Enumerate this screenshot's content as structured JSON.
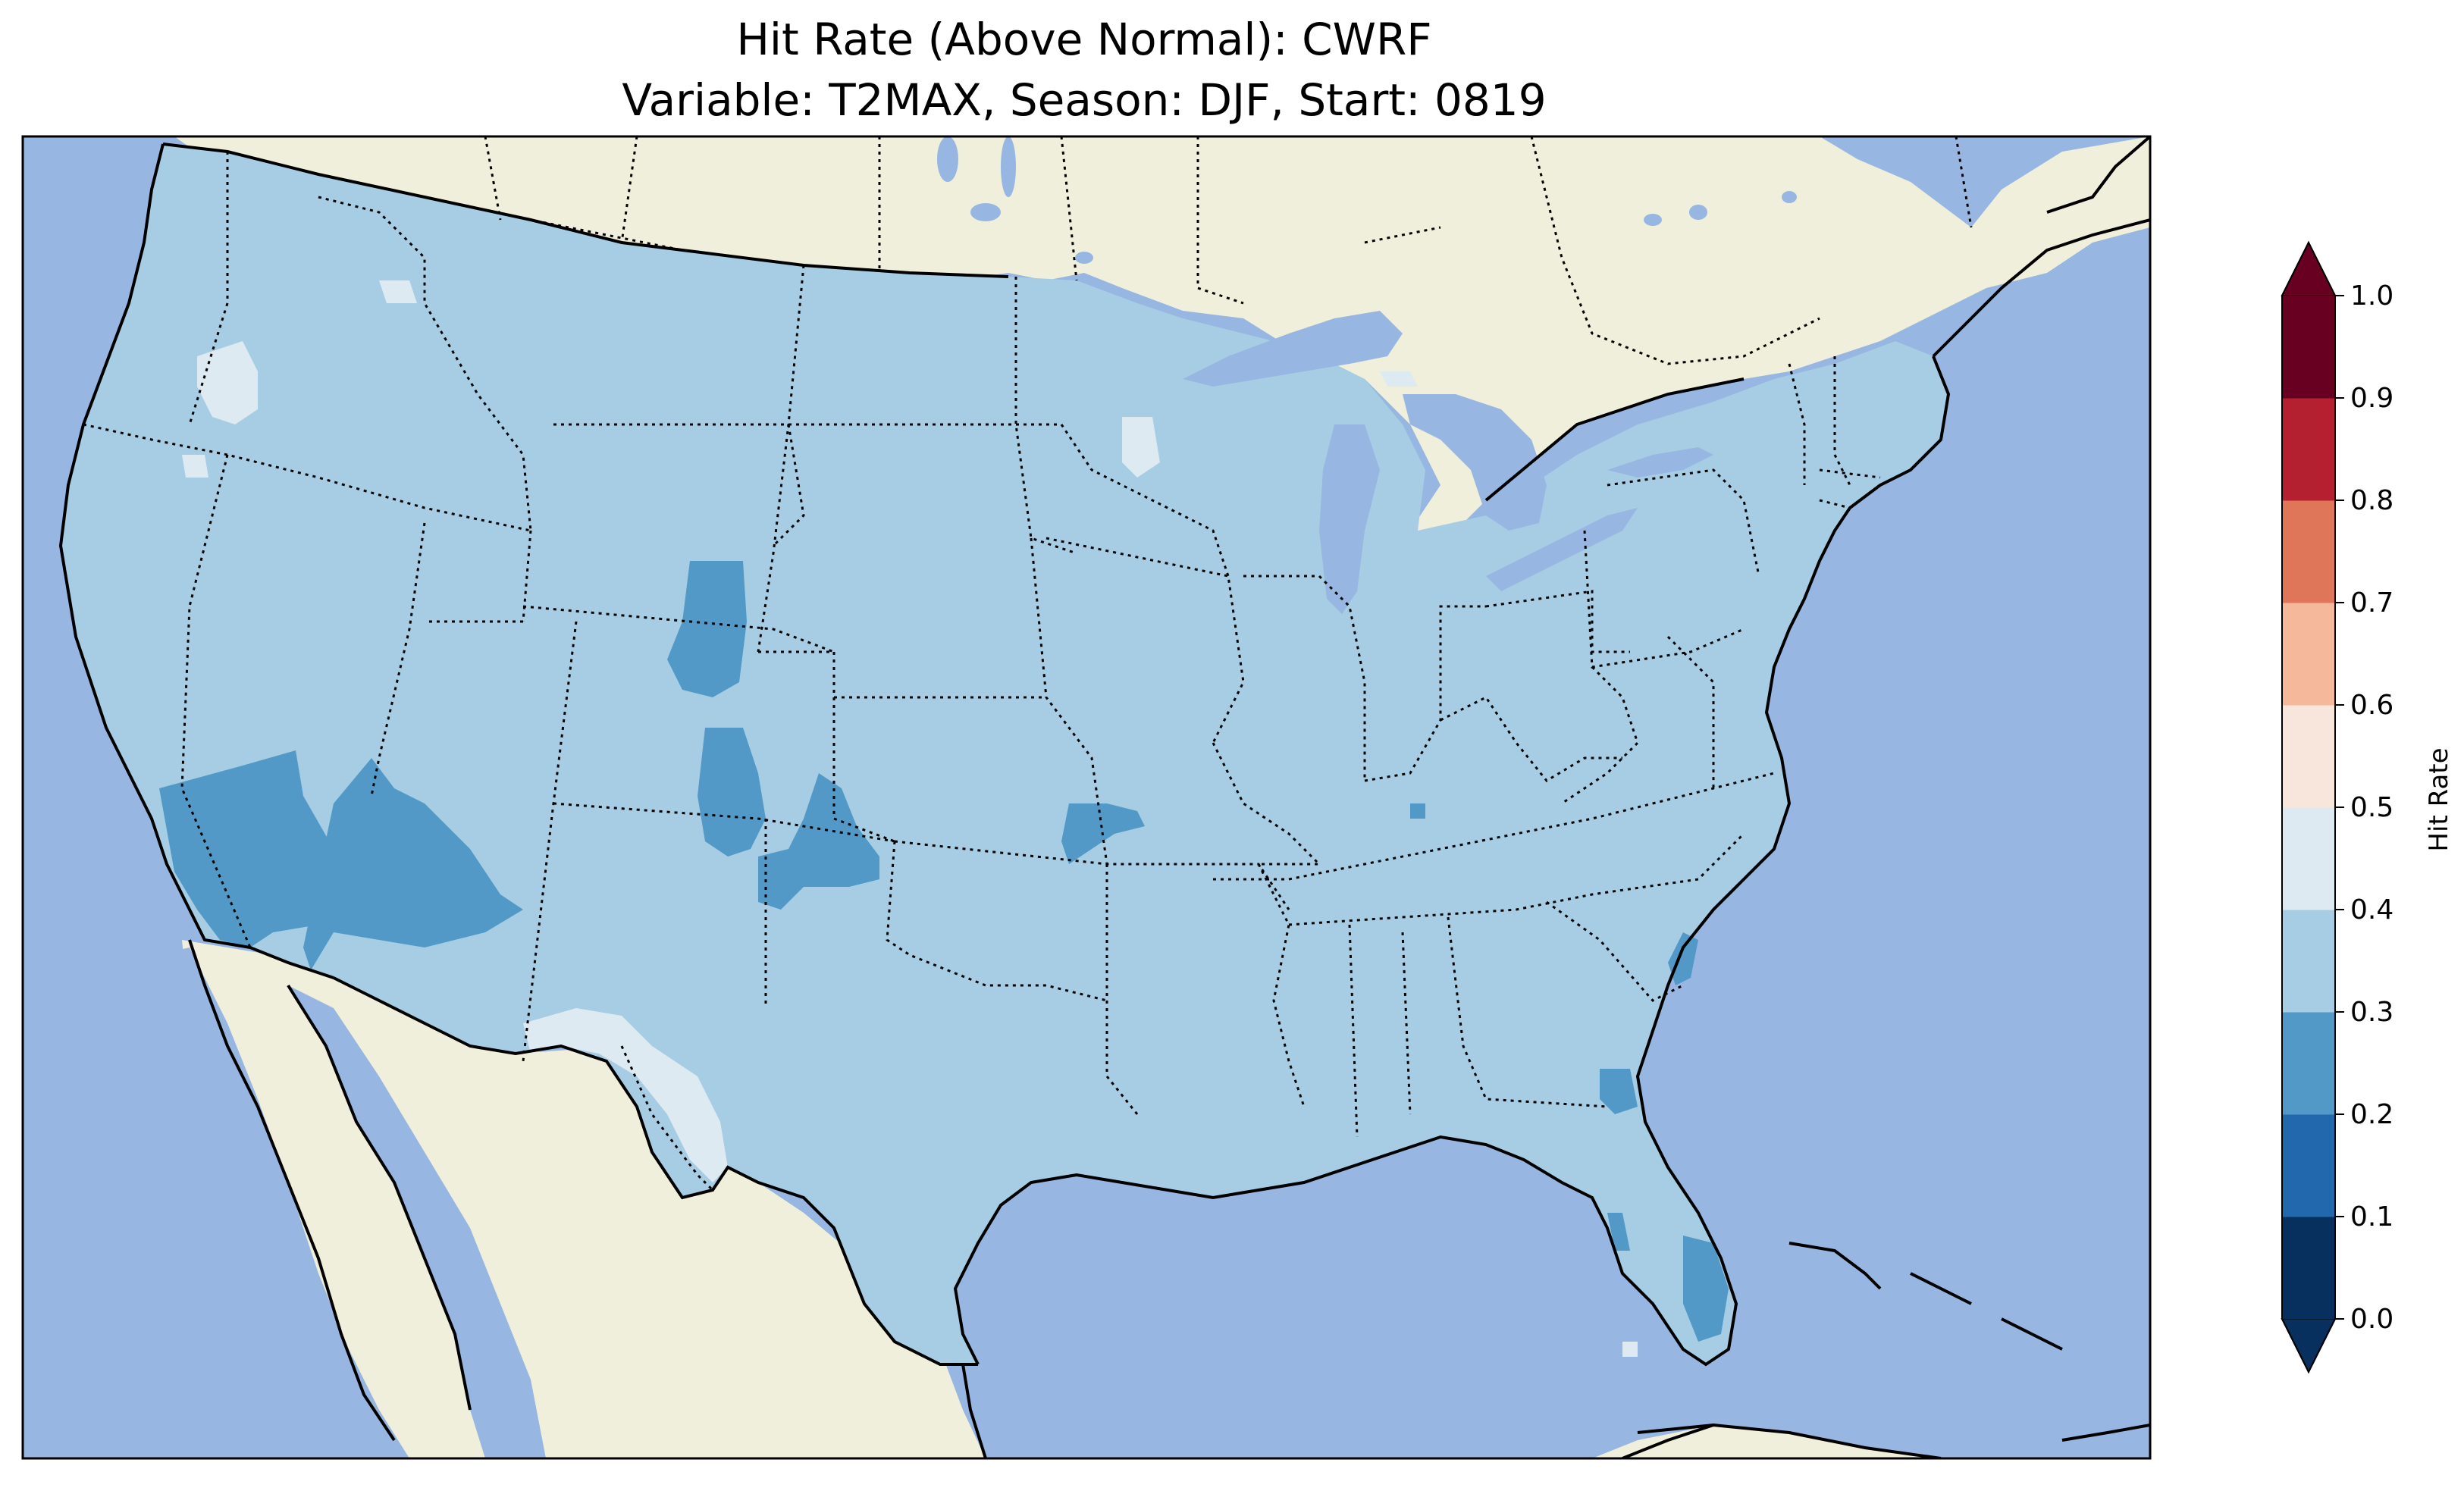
{
  "title_line1": "Hit Rate (Above Normal): CWRF",
  "title_line2": "Variable: T2MAX, Season: DJF, Start: 0819",
  "colors": {
    "ocean": "#97b6e1",
    "land": "#efefdb",
    "field_main": "#a6cde3",
    "field_low": "#5299c8",
    "field_high": "#deeaf2",
    "field_dark": "#3f8bc0"
  },
  "colorbar": {
    "label": "Hit Rate",
    "ticks": [
      "0.0",
      "0.1",
      "0.2",
      "0.3",
      "0.4",
      "0.5",
      "0.6",
      "0.7",
      "0.8",
      "0.9",
      "1.0"
    ],
    "colors": [
      "#053061",
      "#2166ac",
      "#4393c3",
      "#92c5de",
      "#d1e5f0",
      "#f7f7f7",
      "#fddbc7",
      "#f4a582",
      "#d6604d",
      "#b2182b"
    ],
    "displayed_colors": [
      "#07305f",
      "#2268ad",
      "#5299c8",
      "#a6cde3",
      "#deeaf2",
      "#f8e6dc",
      "#f5b89a",
      "#df7559",
      "#b42030",
      "#680021"
    ],
    "under_color": "#07305f",
    "over_color": "#680021"
  }
}
